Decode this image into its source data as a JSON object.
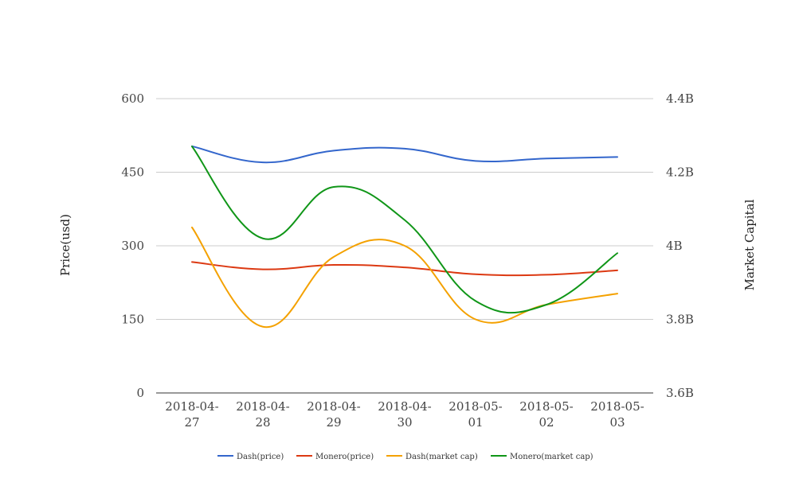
{
  "colors": {
    "dash_price": "#3366cc",
    "monero_price": "#dc3912",
    "dash_market_cap": "#f4a100",
    "monero_market_cap": "#109618"
  },
  "chart_data": {
    "type": "line",
    "title": "",
    "xlabel": "",
    "ylabel": "Price(usd)",
    "y2label": "Market Capital",
    "categories": [
      [
        "2018-04-",
        "27"
      ],
      [
        "2018-04-",
        "28"
      ],
      [
        "2018-04-",
        "29"
      ],
      [
        "2018-04-",
        "30"
      ],
      [
        "2018-05-",
        "01"
      ],
      [
        "2018-05-",
        "02"
      ],
      [
        "2018-05-",
        "03"
      ]
    ],
    "ylim": [
      0,
      600
    ],
    "yticks": [
      "0",
      "150",
      "300",
      "450",
      "600"
    ],
    "y2lim": [
      3600000000,
      4400000000
    ],
    "y2ticks": [
      "3.6B",
      "3.8B",
      "4B",
      "4.2B",
      "4.4B"
    ],
    "grid": true,
    "legend_position": "bottom",
    "series": [
      {
        "name": "Dash(price)",
        "axis": "left",
        "color": "#3366cc",
        "values": [
          503,
          470,
          494,
          498,
          473,
          478,
          481
        ]
      },
      {
        "name": "Monero(price)",
        "axis": "left",
        "color": "#dc3912",
        "values": [
          267,
          252,
          261,
          256,
          242,
          241,
          250
        ]
      },
      {
        "name": "Dash(market cap)",
        "axis": "right",
        "color": "#f4a100",
        "values": [
          4050000000,
          3780000000,
          3970000000,
          4000000000,
          3800000000,
          3840000000,
          3870000000
        ]
      },
      {
        "name": "Monero(market cap)",
        "axis": "right",
        "color": "#109618",
        "values": [
          4270000000,
          4020000000,
          4160000000,
          4070000000,
          3850000000,
          3840000000,
          3980000000
        ]
      }
    ]
  }
}
